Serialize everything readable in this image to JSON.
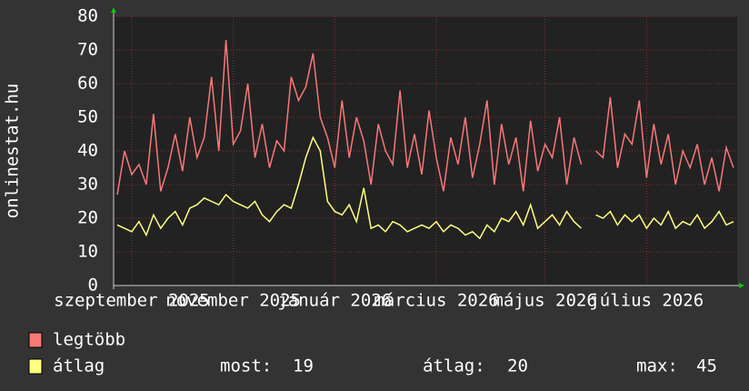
{
  "chart_data": {
    "type": "line",
    "y_label": "onlinestat.hu",
    "categories": [
      null,
      null,
      "szeptember 2025",
      null,
      null,
      null,
      null,
      null,
      null,
      null,
      null,
      null,
      null,
      null,
      null,
      null,
      "november 2025",
      null,
      null,
      null,
      null,
      null,
      null,
      null,
      null,
      null,
      null,
      null,
      null,
      null,
      "január 2026",
      null,
      null,
      null,
      null,
      null,
      null,
      null,
      null,
      null,
      null,
      null,
      null,
      null,
      "március 2026",
      null,
      null,
      null,
      null,
      null,
      null,
      null,
      null,
      null,
      null,
      null,
      null,
      null,
      null,
      "május 2026",
      null,
      null,
      null,
      null,
      null,
      null,
      null,
      null,
      null,
      null,
      null,
      null,
      null,
      "július 2026",
      null,
      null,
      null,
      null,
      null,
      null,
      null,
      null,
      null,
      null,
      null,
      null
    ],
    "series": [
      {
        "name": "legtöbb",
        "color": "#f87878",
        "values": [
          27,
          40,
          33,
          36,
          30,
          51,
          28,
          35,
          45,
          34,
          50,
          38,
          44,
          62,
          40,
          73,
          42,
          46,
          60,
          38,
          48,
          35,
          43,
          40,
          62,
          55,
          59,
          69,
          50,
          44,
          35,
          55,
          38,
          50,
          43,
          30,
          48,
          40,
          36,
          58,
          35,
          45,
          33,
          52,
          38,
          28,
          44,
          36,
          50,
          32,
          42,
          55,
          30,
          48,
          36,
          44,
          28,
          49,
          34,
          42,
          38,
          50,
          30,
          44,
          36,
          null,
          40,
          38,
          56,
          35,
          45,
          42,
          55,
          32,
          48,
          36,
          45,
          30,
          40,
          35,
          42,
          30,
          38,
          28,
          41,
          35
        ]
      },
      {
        "name": "átlag",
        "color": "#ffff80",
        "values": [
          18,
          17,
          16,
          19,
          15,
          21,
          17,
          20,
          22,
          18,
          23,
          24,
          26,
          25,
          24,
          27,
          25,
          24,
          23,
          25,
          21,
          19,
          22,
          24,
          23,
          30,
          38,
          44,
          40,
          25,
          22,
          21,
          24,
          19,
          29,
          17,
          18,
          16,
          19,
          18,
          16,
          17,
          18,
          17,
          19,
          16,
          18,
          17,
          15,
          16,
          14,
          18,
          16,
          20,
          19,
          22,
          18,
          24,
          17,
          19,
          21,
          18,
          22,
          19,
          17,
          null,
          21,
          20,
          22,
          18,
          21,
          19,
          21,
          17,
          20,
          18,
          22,
          17,
          19,
          18,
          21,
          17,
          19,
          22,
          18,
          19
        ]
      }
    ],
    "ylim": [
      0,
      80
    ],
    "yticks": [
      0,
      10,
      20,
      30,
      40,
      50,
      60,
      70,
      80
    ],
    "grid": true,
    "stats": [
      {
        "label": "most:",
        "value": 19
      },
      {
        "label": "átlag:",
        "value": 20
      },
      {
        "label": "max:",
        "value": 45
      }
    ]
  }
}
